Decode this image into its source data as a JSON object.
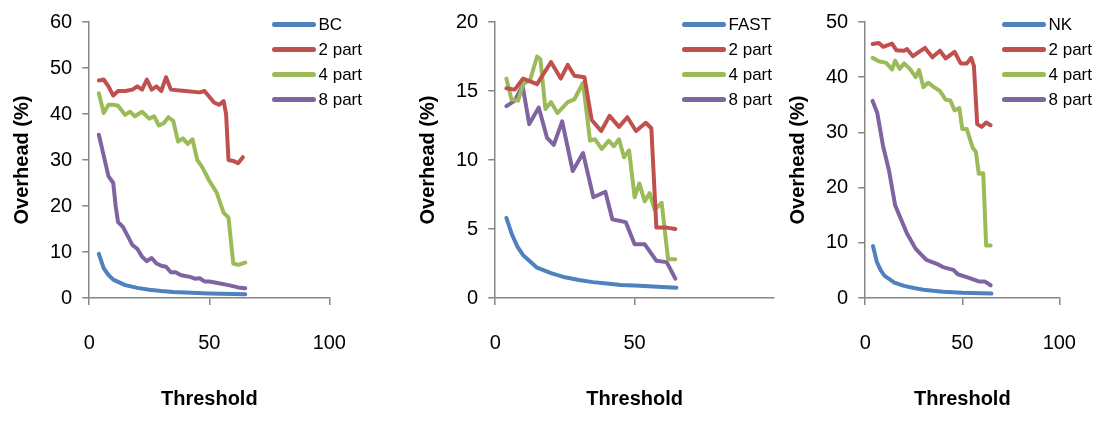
{
  "chart_data": [
    {
      "type": "line",
      "xlabel": "Threshold",
      "ylabel": "Overhead (%)",
      "xlim": [
        0,
        100
      ],
      "xticks": [
        0,
        50,
        100
      ],
      "ylim": [
        0,
        60
      ],
      "yticks": [
        0,
        10,
        20,
        30,
        40,
        50,
        60
      ],
      "grid": false,
      "legend": "top right",
      "marker": "none",
      "line_style": "solid",
      "series": [
        {
          "name": "BC",
          "color": "#4f81bd",
          "x": [
            4,
            6,
            8,
            10,
            15,
            20,
            25,
            30,
            35,
            40,
            45,
            50,
            55,
            60,
            65
          ],
          "values": [
            9.6,
            6.5,
            5,
            4,
            2.8,
            2.2,
            1.8,
            1.5,
            1.3,
            1.2,
            1.1,
            1.0,
            0.9,
            0.85,
            0.8
          ]
        },
        {
          "name": "2 part",
          "color": "#c0504d",
          "x": [
            4,
            6,
            8,
            10,
            12,
            15,
            18,
            20,
            22,
            24,
            26,
            28,
            30,
            32,
            34,
            40,
            46,
            48,
            52,
            54,
            56,
            57,
            58,
            60,
            62,
            64
          ],
          "values": [
            47.3,
            47.5,
            46,
            44,
            45,
            45,
            45.3,
            46,
            45.3,
            47.5,
            45.3,
            46,
            45,
            48,
            45.3,
            45,
            44.7,
            45,
            42.5,
            42,
            42.8,
            40,
            30,
            29.8,
            29.3,
            30.6
          ]
        },
        {
          "name": "4 part",
          "color": "#9bbb59",
          "x": [
            4,
            6,
            8,
            10,
            12,
            15,
            17,
            19,
            22,
            25,
            27,
            29,
            31,
            33,
            35,
            37,
            39,
            41,
            43,
            45,
            47,
            50,
            53,
            56,
            58,
            60,
            62,
            65
          ],
          "values": [
            44.5,
            40.2,
            42,
            42,
            41.8,
            39.8,
            40.5,
            39.5,
            40.5,
            39,
            39.5,
            37.5,
            38,
            39.3,
            38.5,
            34,
            34.7,
            33.5,
            34.5,
            30,
            28.5,
            25.5,
            23,
            18.5,
            17.5,
            7.5,
            7.2,
            7.7
          ]
        },
        {
          "name": "8 part",
          "color": "#8064a2",
          "x": [
            4,
            6,
            8,
            10,
            11,
            12,
            14,
            16,
            18,
            20,
            22,
            24,
            26,
            28,
            30,
            32,
            34,
            36,
            38,
            40,
            42,
            44,
            46,
            48,
            50,
            54,
            58,
            62,
            65
          ],
          "values": [
            35.5,
            31,
            26.5,
            25,
            20,
            16.5,
            15.5,
            13.5,
            11.5,
            10.7,
            9,
            8,
            8.7,
            7.5,
            7,
            6.8,
            5.6,
            5.6,
            5,
            4.8,
            4.6,
            4.2,
            4.3,
            3.6,
            3.6,
            3.2,
            2.8,
            2.3,
            2.1
          ]
        }
      ]
    },
    {
      "type": "line",
      "xlabel": "Threshold",
      "ylabel": "Overhead (%)",
      "xlim": [
        0,
        100
      ],
      "xticks": [
        0,
        50
      ],
      "ylim": [
        0,
        20
      ],
      "yticks": [
        0,
        5,
        10,
        15,
        20
      ],
      "grid": false,
      "legend": "top right",
      "marker": "none",
      "line_style": "solid",
      "series": [
        {
          "name": "FAST",
          "color": "#4f81bd",
          "x": [
            4,
            6,
            8,
            10,
            15,
            20,
            25,
            30,
            35,
            40,
            45,
            50,
            55,
            60,
            65
          ],
          "values": [
            5.8,
            4.6,
            3.7,
            3.1,
            2.2,
            1.8,
            1.5,
            1.3,
            1.15,
            1.05,
            0.95,
            0.9,
            0.85,
            0.8,
            0.75
          ]
        },
        {
          "name": "2 part",
          "color": "#c0504d",
          "x": [
            4,
            7,
            10,
            15,
            20,
            23.5,
            26,
            28.4,
            32,
            34.6,
            38,
            41,
            44.4,
            47.4,
            50.5,
            54,
            56,
            57.8,
            61.5,
            64.6
          ],
          "values": [
            15.2,
            15.1,
            15.9,
            15.5,
            17.1,
            15.9,
            16.9,
            16.1,
            16,
            12.9,
            12.1,
            13.2,
            12.4,
            13.1,
            12.1,
            12.7,
            12.3,
            5.1,
            5.1,
            5.0
          ]
        },
        {
          "name": "4 part",
          "color": "#9bbb59",
          "x": [
            4,
            5.8,
            8.2,
            10,
            12.5,
            15,
            16.2,
            18,
            20,
            22.3,
            26,
            28.4,
            31.5,
            34,
            35.8,
            38.2,
            40.7,
            42.5,
            44.4,
            46.2,
            48,
            50,
            51.7,
            53.6,
            55.4,
            57.2,
            59.7,
            62,
            64.6
          ],
          "values": [
            15.9,
            14.4,
            14.3,
            15.5,
            15.8,
            17.5,
            17.3,
            13.7,
            14.2,
            13.4,
            14.2,
            14.4,
            15.6,
            11.4,
            11.5,
            10.8,
            11.4,
            11.0,
            11.5,
            10.2,
            10.7,
            7.3,
            8.3,
            7.0,
            7.6,
            6.4,
            6.9,
            2.8,
            2.8
          ]
        },
        {
          "name": "8 part",
          "color": "#8064a2",
          "x": [
            4,
            7,
            9.8,
            12.2,
            15.6,
            18.6,
            21,
            24,
            27.8,
            31.5,
            35.2,
            39.5,
            42,
            44.4,
            46.8,
            50,
            53.6,
            57.8,
            61.5,
            64.6
          ],
          "values": [
            13.9,
            14.3,
            15.4,
            12.6,
            13.8,
            11.6,
            11.1,
            12.8,
            9.2,
            10.5,
            7.3,
            7.7,
            5.7,
            5.6,
            5.5,
            3.9,
            3.9,
            2.7,
            2.6,
            1.4
          ]
        }
      ]
    },
    {
      "type": "line",
      "xlabel": "Threshold",
      "ylabel": "Overhead (%)",
      "xlim": [
        0,
        100
      ],
      "xticks": [
        0,
        50,
        100
      ],
      "ylim": [
        0,
        50
      ],
      "yticks": [
        0,
        10,
        20,
        30,
        40,
        50
      ],
      "grid": false,
      "legend": "top right",
      "marker": "none",
      "line_style": "solid",
      "series": [
        {
          "name": "NK",
          "color": "#4f81bd",
          "x": [
            4,
            6,
            8,
            10,
            15,
            20,
            25,
            30,
            35,
            40,
            45,
            50,
            55,
            60,
            65
          ],
          "values": [
            9.4,
            6.5,
            5,
            4,
            2.8,
            2.2,
            1.8,
            1.5,
            1.3,
            1.15,
            1.05,
            0.95,
            0.9,
            0.85,
            0.8
          ]
        },
        {
          "name": "2 part",
          "color": "#c0504d",
          "x": [
            3.8,
            7,
            9.2,
            13.8,
            16,
            20,
            21.5,
            24.6,
            27.7,
            30.8,
            34.6,
            38.5,
            41.5,
            46,
            49.2,
            52.3,
            54.6,
            56,
            57.7,
            60,
            62.3,
            64.6
          ],
          "values": [
            46,
            46.2,
            45.5,
            46.1,
            44.9,
            44.8,
            45.1,
            43.8,
            44.6,
            45.3,
            43.6,
            44.8,
            43.4,
            44.6,
            42.5,
            42.5,
            43.5,
            42,
            31.5,
            31,
            31.8,
            31.3
          ]
        },
        {
          "name": "4 part",
          "color": "#9bbb59",
          "x": [
            3.8,
            7,
            10.8,
            13.8,
            15.4,
            17.7,
            20,
            23,
            26,
            27.7,
            30,
            32.3,
            35.4,
            38.5,
            41.5,
            43.8,
            46,
            48.5,
            50,
            52.3,
            55.4,
            57,
            58.5,
            60.8,
            62.3,
            64.6
          ],
          "values": [
            43.5,
            42.9,
            42.6,
            41.4,
            43,
            41.5,
            42.5,
            41.5,
            40,
            41.3,
            38.2,
            39,
            38.2,
            37.5,
            35.9,
            35.8,
            34,
            34.4,
            30.6,
            30.6,
            27.2,
            26.5,
            22.5,
            22.6,
            9.5,
            9.5
          ]
        },
        {
          "name": "8 part",
          "color": "#8064a2",
          "x": [
            3.8,
            6.2,
            9.2,
            12.3,
            15.4,
            18.5,
            21.5,
            26,
            31.5,
            36.9,
            40,
            45.4,
            47.7,
            53.8,
            58.5,
            61.5,
            64.6
          ],
          "values": [
            35.7,
            33.5,
            27.5,
            23,
            16.8,
            14.2,
            11.7,
            8.9,
            6.9,
            6.2,
            5.6,
            5.1,
            4.3,
            3.6,
            3.0,
            3.0,
            2.3
          ]
        }
      ]
    }
  ]
}
